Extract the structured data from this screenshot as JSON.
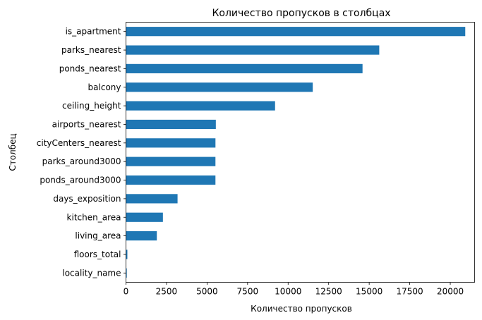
{
  "chart_data": {
    "type": "bar",
    "orientation": "horizontal",
    "title": "Количество пропусков в столбцах",
    "xlabel": "Количество пропусков",
    "ylabel": "Столбец",
    "categories": [
      "is_apartment",
      "parks_nearest",
      "ponds_nearest",
      "balcony",
      "ceiling_height",
      "airports_nearest",
      "cityCenters_nearest",
      "parks_around3000",
      "ponds_around3000",
      "days_exposition",
      "kitchen_area",
      "living_area",
      "floors_total",
      "locality_name"
    ],
    "values": [
      20924,
      15620,
      14589,
      11519,
      9195,
      5542,
      5519,
      5518,
      5518,
      3181,
      2278,
      1903,
      86,
      49
    ],
    "xlim": [
      0,
      21500
    ],
    "xticks": [
      0,
      2500,
      5000,
      7500,
      10000,
      12500,
      15000,
      17500,
      20000
    ],
    "xtick_labels": [
      "0",
      "2500",
      "5000",
      "7500",
      "10000",
      "12500",
      "15000",
      "17500",
      "20000"
    ],
    "bar_color": "#1f77b4",
    "grid": false,
    "legend": "none"
  }
}
